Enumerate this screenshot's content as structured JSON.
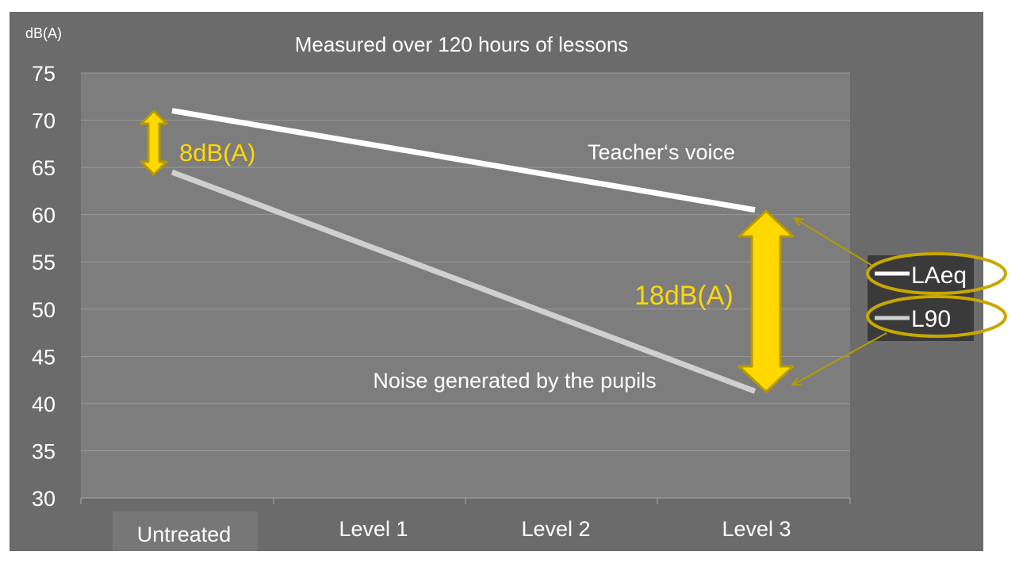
{
  "chart_data": {
    "type": "line",
    "title": "Measured over 120 hours of lessons",
    "ylabel": "dB(A)",
    "ylim": [
      30,
      75
    ],
    "yticks": [
      75,
      70,
      65,
      60,
      55,
      50,
      45,
      40,
      35,
      30
    ],
    "categories": [
      "Untreated",
      "Level 1",
      "Level 2",
      "Level 3"
    ],
    "grid": true,
    "legend_position": "right",
    "series": [
      {
        "name": "LAeq",
        "x": [
          "Untreated",
          "Level 3"
        ],
        "values": [
          71,
          60.5
        ],
        "color": "#ffffff"
      },
      {
        "name": "L90",
        "x": [
          "Untreated",
          "Level 3"
        ],
        "values": [
          64.5,
          41.3
        ],
        "color": "#d0d0d0"
      }
    ],
    "annotations": {
      "teacher": "Teacher‘s voice",
      "pupils": "Noise generated by the pupils",
      "gap_untreated": "8dB(A)",
      "gap_level3": "18dB(A)"
    },
    "colors": {
      "background": "#6b6b6b",
      "plot_area": "#7d7d7d",
      "gridline": "#9a9a9a",
      "highlight": "#ffd800",
      "highlight_outline": "#b59a00",
      "text": "#ffffff"
    }
  }
}
